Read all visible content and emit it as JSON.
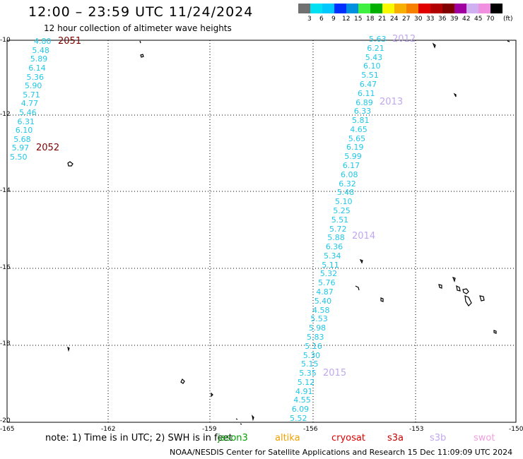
{
  "header": {
    "title": "12:00 – 23:59 UTC 11/24/2024",
    "subtitle": "12 hour collection of altimeter wave heights"
  },
  "colorbar": {
    "unit": "(ft)",
    "colors": [
      "#707070",
      "#00e0f0",
      "#00c8ff",
      "#0030ff",
      "#0090e0",
      "#40f040",
      "#00b000",
      "#f8f800",
      "#f8b000",
      "#f88000",
      "#e00000",
      "#b00000",
      "#800000",
      "#a000a0",
      "#d0b0f0",
      "#f090e0",
      "#000000"
    ],
    "labels": [
      "3",
      "6",
      "9",
      "12",
      "15",
      "18",
      "21",
      "24",
      "27",
      "30",
      "33",
      "36",
      "39",
      "42",
      "45",
      "70"
    ]
  },
  "axes": {
    "x_ticks": [
      "-165",
      "-162",
      "-159",
      "-156",
      "-153",
      "-150"
    ],
    "y_ticks": [
      "-10",
      "-12",
      "-14",
      "-16",
      "-18",
      "-20"
    ],
    "xlim": [
      -165,
      -150
    ],
    "ylim": [
      -20,
      -10
    ]
  },
  "passes": [
    {
      "label": "2051",
      "color": "#800000"
    },
    {
      "label": "2052",
      "color": "#800000"
    },
    {
      "label": "2012",
      "color": "#c0a8f0"
    },
    {
      "label": "2013",
      "color": "#c0a8f0"
    },
    {
      "label": "2014",
      "color": "#c0a8f0"
    },
    {
      "label": "2015",
      "color": "#c0a8f0"
    }
  ],
  "track_west": [
    "4.80",
    "5.48",
    "5.89",
    "6.14",
    "5.36",
    "5.90",
    "5.71",
    "4.77",
    "5.46",
    "6.31",
    "6.10",
    "5.68",
    "5.97",
    "5.50"
  ],
  "track_east": [
    "5.63",
    "6.21",
    "5.43",
    "6.10",
    "5.51",
    "6.47",
    "6.11",
    "6.89",
    "6.33",
    "5.81",
    "4.65",
    "5.65",
    "6.19",
    "5.99",
    "6.17",
    "6.08",
    "6.32",
    "5.48",
    "5.10",
    "5.25",
    "5.51",
    "5.72",
    "5.88",
    "6.36",
    "5.34",
    "5.11",
    "5.32",
    "5.76",
    "4.87",
    "5.40",
    "4.58",
    "5.53",
    "5.98",
    "5.83",
    "5.16",
    "5.30",
    "5.15",
    "5.35",
    "5.12",
    "4.91",
    "4.55",
    "6.09",
    "5.52"
  ],
  "note": "note: 1) Time is in UTC; 2) SWH is in feet",
  "satellites": [
    {
      "name": "jason3",
      "color": "#00a000"
    },
    {
      "name": "altika",
      "color": "#f0a000"
    },
    {
      "name": "cryosat",
      "color": "#e00000"
    },
    {
      "name": "s3a",
      "color": "#c00000"
    },
    {
      "name": "s3b",
      "color": "#c0a8f0"
    },
    {
      "name": "swot",
      "color": "#f0a0e0"
    }
  ],
  "footer": "NOAA/NESDIS Center for Satellite Applications and Research    15 Dec 11:09:09 UTC 2024"
}
